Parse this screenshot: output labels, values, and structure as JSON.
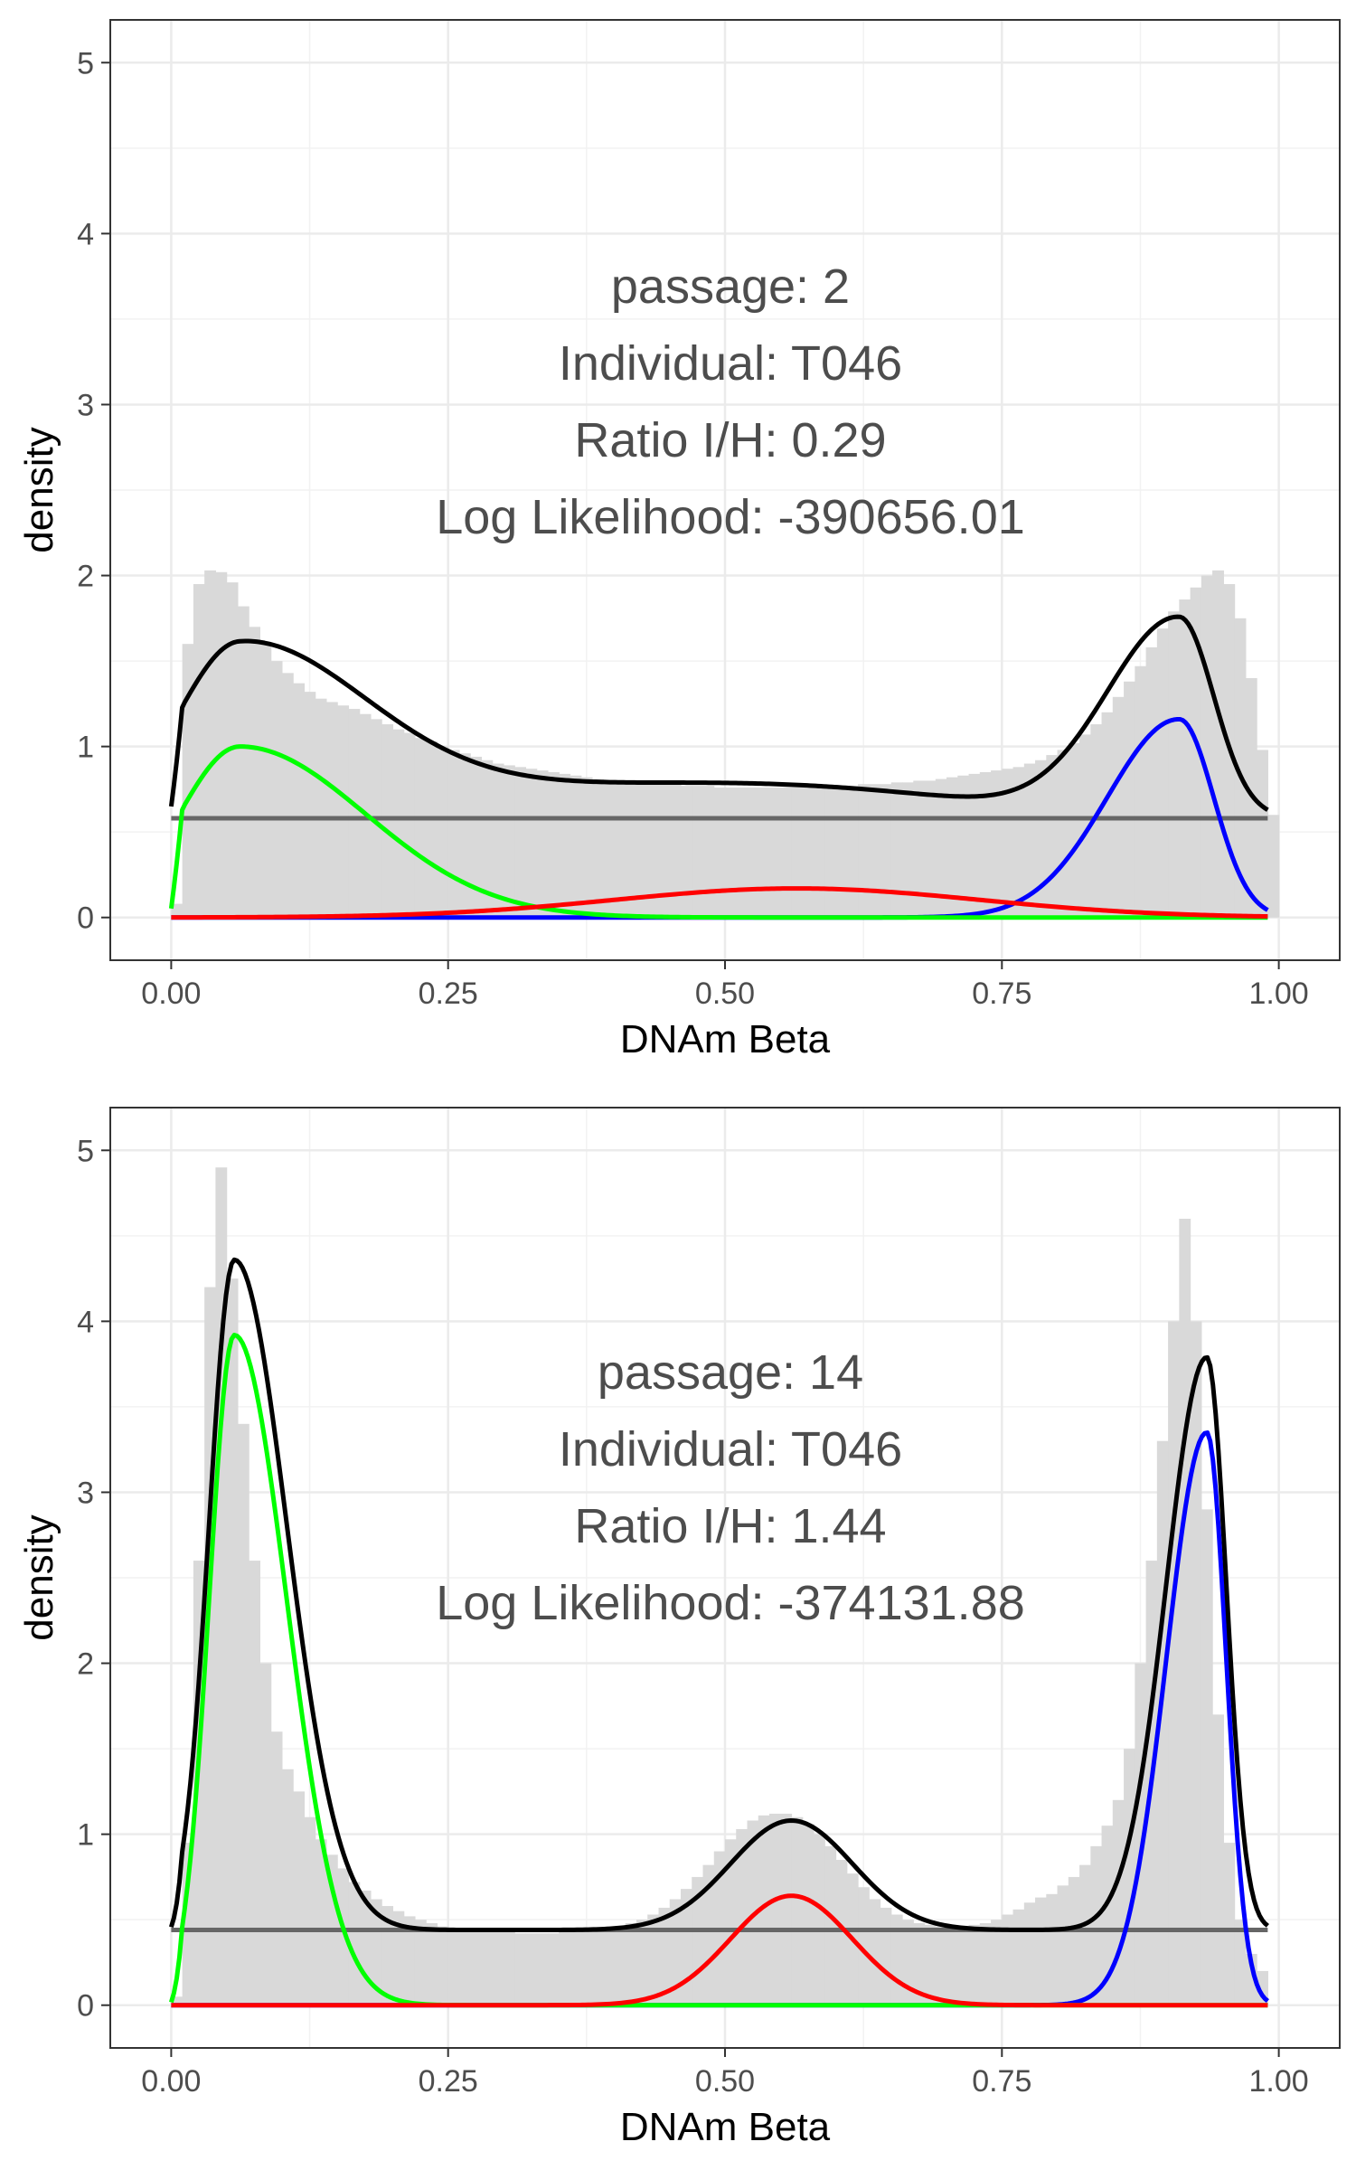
{
  "chart_data": [
    {
      "type": "histogram-with-density-curves",
      "annotations": [
        "passage: 2",
        "Individual: T046",
        "Ratio I/H: 0.29",
        "Log Likelihood: -390656.01"
      ],
      "xlabel": "DNAm Beta",
      "ylabel": "density",
      "xlim": [
        -0.055,
        1.055
      ],
      "ylim": [
        -0.25,
        5.25
      ],
      "xticks": [
        0,
        0.25,
        0.5,
        0.75,
        1
      ],
      "xtick_labels": [
        "0.00",
        "0.25",
        "0.50",
        "0.75",
        "1.00"
      ],
      "yticks": [
        0,
        1,
        2,
        3,
        4,
        5
      ],
      "ytick_labels": [
        "0",
        "1",
        "2",
        "3",
        "4",
        "5"
      ],
      "grid": true,
      "histogram": {
        "bin_width": 0.01,
        "x_start": 0.0,
        "values": [
          0.08,
          1.6,
          1.95,
          2.03,
          2.02,
          1.96,
          1.82,
          1.7,
          1.6,
          1.5,
          1.43,
          1.37,
          1.32,
          1.28,
          1.26,
          1.24,
          1.22,
          1.19,
          1.16,
          1.13,
          1.1,
          1.08,
          1.05,
          1.03,
          1.0,
          0.98,
          0.96,
          0.94,
          0.92,
          0.9,
          0.89,
          0.88,
          0.87,
          0.86,
          0.85,
          0.84,
          0.83,
          0.82,
          0.81,
          0.8,
          0.8,
          0.79,
          0.79,
          0.78,
          0.78,
          0.78,
          0.77,
          0.77,
          0.77,
          0.76,
          0.76,
          0.76,
          0.76,
          0.76,
          0.76,
          0.76,
          0.76,
          0.76,
          0.76,
          0.77,
          0.77,
          0.77,
          0.78,
          0.78,
          0.78,
          0.79,
          0.79,
          0.8,
          0.8,
          0.81,
          0.82,
          0.83,
          0.84,
          0.85,
          0.86,
          0.87,
          0.88,
          0.9,
          0.92,
          0.95,
          0.98,
          1.02,
          1.07,
          1.13,
          1.2,
          1.29,
          1.38,
          1.47,
          1.58,
          1.69,
          1.79,
          1.86,
          1.93,
          2.0,
          2.03,
          1.95,
          1.75,
          1.4,
          0.98,
          0.6
        ]
      },
      "curves": {
        "x_from": 0.0,
        "x_to": 0.99,
        "uniform_level": 0.58,
        "components": [
          {
            "color": "#00ff00",
            "mode": "beta",
            "mu": 0.062,
            "sigma": 0.084,
            "scale": 1.0
          },
          {
            "color": "#ff0000",
            "mode": "gauss",
            "mu": 0.565,
            "sigma": 0.165,
            "scale": 0.17
          },
          {
            "color": "#0000ff",
            "mode": "beta",
            "mu": 0.91,
            "sigma": 0.048,
            "scale": 1.16
          }
        ]
      }
    },
    {
      "type": "histogram-with-density-curves",
      "annotations": [
        "passage: 14",
        "Individual: T046",
        "Ratio I/H: 1.44",
        "Log Likelihood: -374131.88"
      ],
      "xlabel": "DNAm Beta",
      "ylabel": "density",
      "xlim": [
        -0.055,
        1.055
      ],
      "ylim": [
        -0.25,
        5.25
      ],
      "xticks": [
        0,
        0.25,
        0.5,
        0.75,
        1
      ],
      "xtick_labels": [
        "0.00",
        "0.25",
        "0.50",
        "0.75",
        "1.00"
      ],
      "yticks": [
        0,
        1,
        2,
        3,
        4,
        5
      ],
      "ytick_labels": [
        "0",
        "1",
        "2",
        "3",
        "4",
        "5"
      ],
      "grid": true,
      "histogram": {
        "bin_width": 0.01,
        "x_start": 0.0,
        "values": [
          0.05,
          0.95,
          2.6,
          4.2,
          4.9,
          4.25,
          3.4,
          2.6,
          2.0,
          1.6,
          1.38,
          1.25,
          1.1,
          0.97,
          0.88,
          0.8,
          0.72,
          0.67,
          0.62,
          0.58,
          0.55,
          0.52,
          0.5,
          0.48,
          0.46,
          0.45,
          0.44,
          0.44,
          0.43,
          0.43,
          0.43,
          0.42,
          0.42,
          0.42,
          0.42,
          0.43,
          0.43,
          0.43,
          0.44,
          0.45,
          0.46,
          0.48,
          0.5,
          0.53,
          0.57,
          0.62,
          0.68,
          0.75,
          0.82,
          0.9,
          0.97,
          1.03,
          1.08,
          1.11,
          1.12,
          1.12,
          1.1,
          1.06,
          1.0,
          0.93,
          0.85,
          0.77,
          0.69,
          0.62,
          0.57,
          0.53,
          0.5,
          0.48,
          0.47,
          0.46,
          0.46,
          0.46,
          0.47,
          0.48,
          0.5,
          0.53,
          0.56,
          0.6,
          0.63,
          0.65,
          0.7,
          0.75,
          0.82,
          0.93,
          1.05,
          1.2,
          1.5,
          2.0,
          2.6,
          3.3,
          4.0,
          4.6,
          4.0,
          2.9,
          1.7,
          0.95,
          0.5,
          0.3,
          0.2
        ]
      },
      "curves": {
        "x_from": 0.0,
        "x_to": 0.99,
        "uniform_level": 0.44,
        "components": [
          {
            "color": "#00ff00",
            "mode": "beta",
            "mu": 0.057,
            "sigma": 0.035,
            "scale": 3.92
          },
          {
            "color": "#ff0000",
            "mode": "gauss",
            "mu": 0.56,
            "sigma": 0.055,
            "scale": 0.64
          },
          {
            "color": "#0000ff",
            "mode": "beta",
            "mu": 0.935,
            "sigma": 0.027,
            "scale": 3.35
          }
        ]
      }
    }
  ]
}
